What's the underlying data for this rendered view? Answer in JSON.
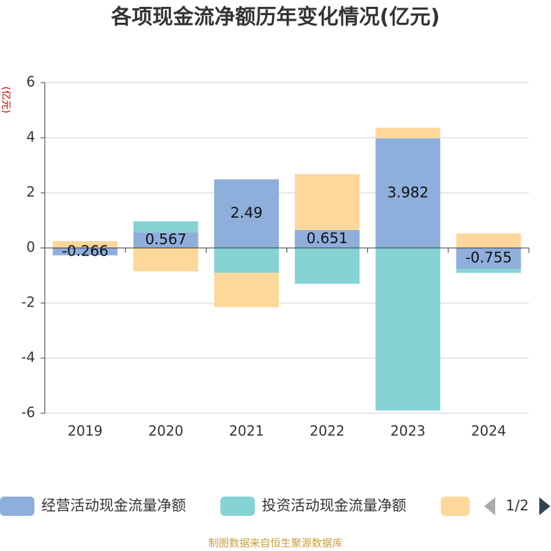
{
  "chart_data": {
    "type": "bar",
    "stacked": true,
    "title": "各项现金流净额历年变化情况(亿元)",
    "y_label": "(亿元)",
    "source": "制图数据来自恒生聚源数据库",
    "legend_page": "1/2",
    "categories": [
      "2019",
      "2020",
      "2021",
      "2022",
      "2023",
      "2024"
    ],
    "series": [
      {
        "name": "经营活动现金流量净额",
        "color": "#8eaedb",
        "values": [
          -0.266,
          0.567,
          2.49,
          0.651,
          3.982,
          -0.755
        ]
      },
      {
        "name": "投资活动现金流量净额",
        "color": "#85d3d5",
        "values": [
          0,
          0.4,
          -0.9,
          -1.3,
          -5.9,
          -0.15
        ]
      },
      {
        "color": "#fdd89a",
        "values": [
          0.25,
          -0.85,
          -1.25,
          2.03,
          0.38,
          0.53
        ]
      }
    ],
    "ylim": [
      -6,
      6
    ],
    "yticks": [
      -6,
      -4,
      -2,
      0,
      2,
      4,
      6
    ],
    "grid": true
  }
}
